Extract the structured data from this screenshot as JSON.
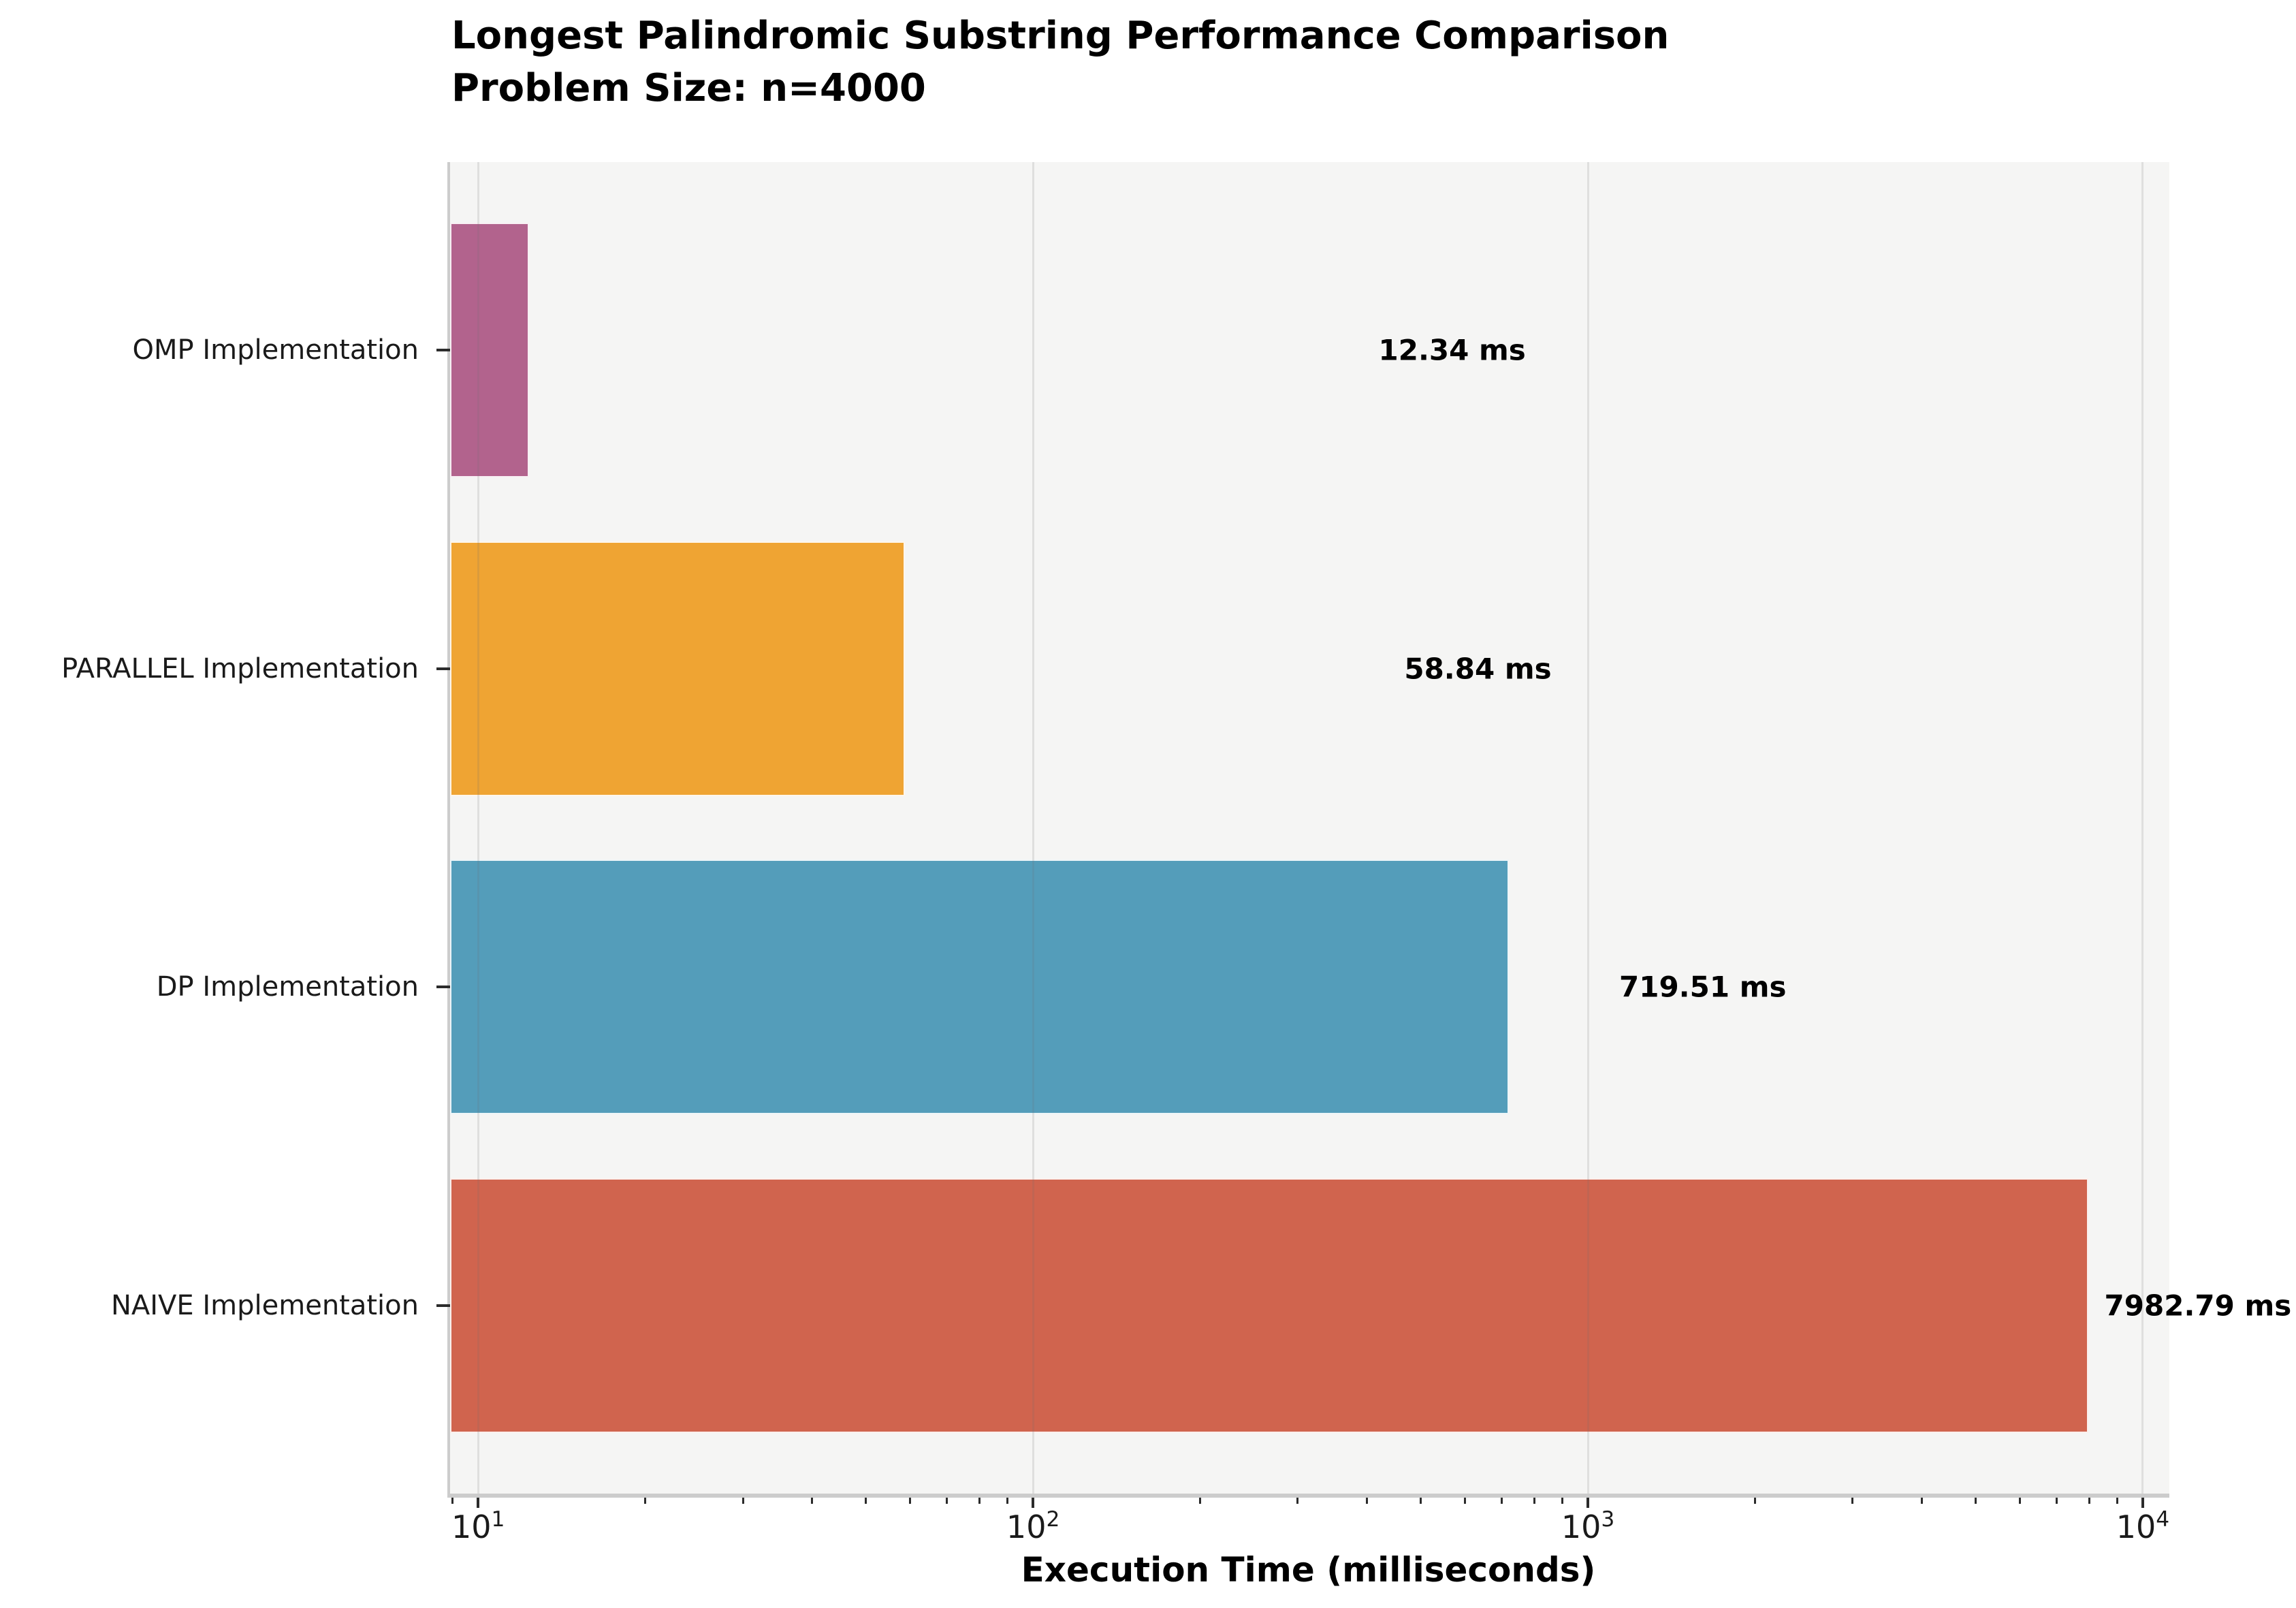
{
  "chart_data": {
    "type": "bar",
    "orientation": "horizontal",
    "title": "Longest Palindromic Substring Performance Comparison",
    "subtitle": "Problem Size: n=4000",
    "xlabel": "Execution Time (milliseconds)",
    "x_scale": "log10",
    "xlim": [
      8.9,
      11040
    ],
    "x_major_ticks": [
      10,
      100,
      1000,
      10000
    ],
    "x_major_tick_labels": [
      "10^1",
      "10^2",
      "10^3",
      "10^4"
    ],
    "grid": "vertical-major-only",
    "legend": "none",
    "categories": [
      "OMP Implementation",
      "PARALLEL Implementation",
      "DP Implementation",
      "NAIVE Implementation"
    ],
    "values_ms": [
      12.34,
      58.84,
      719.51,
      7982.79
    ],
    "value_labels": [
      "12.34 ms",
      "58.84 ms",
      "719.51 ms",
      "7982.79 ms"
    ],
    "bar_colors": [
      "#b2638d",
      "#efa433",
      "#549dba",
      "#d0644e"
    ]
  },
  "style_colors": {
    "figure_background": "#ffffff",
    "plot_background": "#f5f5f4",
    "spine_color": "#cccccc",
    "grid_color": "#e3e3e2",
    "tick_color": "#2b2b2b",
    "text_color": "#000000"
  }
}
